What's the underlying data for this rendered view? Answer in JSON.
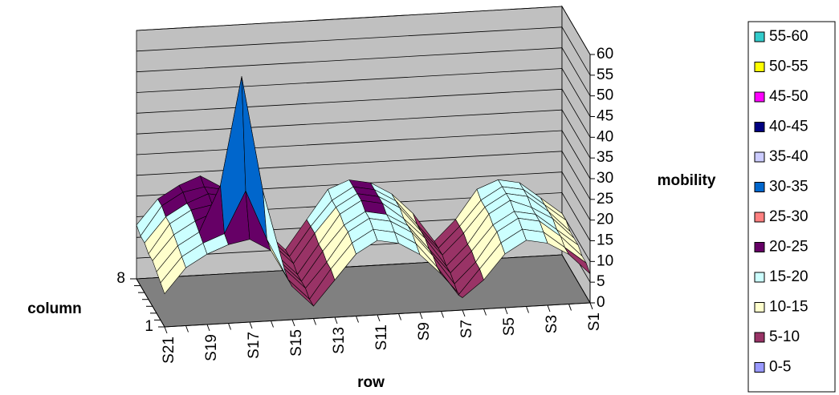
{
  "chart_data": {
    "type": "surface",
    "z_label": "mobility",
    "x_label": "row",
    "y_label": "column",
    "categories": [
      "S21",
      null,
      "S19",
      null,
      "S17",
      null,
      "S15",
      null,
      "S13",
      null,
      "S11",
      null,
      "S9",
      null,
      "S7",
      null,
      "S5",
      null,
      "S3",
      null,
      "S1"
    ],
    "columns": [
      "1",
      null,
      null,
      null,
      null,
      null,
      null,
      "8"
    ],
    "values": [
      [
        8,
        14,
        17,
        19,
        20,
        17,
        8,
        3,
        9,
        15,
        18,
        17,
        14,
        9,
        3,
        7,
        13,
        16,
        15,
        12,
        7
      ],
      [
        9,
        15,
        18,
        20,
        30,
        18,
        8,
        3,
        10,
        16,
        19,
        18,
        15,
        9,
        2,
        8,
        14,
        17,
        16,
        12,
        8
      ],
      [
        10,
        16,
        19,
        30,
        56,
        28,
        9,
        4,
        10,
        17,
        20,
        19,
        16,
        10,
        3,
        8,
        15,
        18,
        17,
        13,
        8
      ],
      [
        11,
        17,
        20,
        22,
        30,
        19,
        9,
        4,
        11,
        17,
        20,
        19,
        16,
        10,
        4,
        9,
        15,
        18,
        17,
        13,
        9
      ],
      [
        11,
        18,
        21,
        22,
        22,
        19,
        9,
        4,
        11,
        18,
        21,
        20,
        16,
        11,
        4,
        9,
        16,
        19,
        17,
        14,
        9
      ],
      [
        12,
        18,
        21,
        23,
        22,
        19,
        10,
        5,
        12,
        18,
        21,
        20,
        17,
        11,
        5,
        10,
        16,
        19,
        18,
        14,
        9
      ],
      [
        12,
        19,
        22,
        23,
        22,
        19,
        10,
        5,
        12,
        18,
        21,
        20,
        17,
        11,
        5,
        10,
        16,
        19,
        18,
        14,
        10
      ],
      [
        13,
        19,
        22,
        24,
        21,
        18,
        10,
        5,
        12,
        19,
        21,
        20,
        17,
        12,
        5,
        10,
        17,
        19,
        18,
        14,
        10
      ]
    ],
    "zlim": [
      0,
      60
    ],
    "zticks": [
      0,
      5,
      10,
      15,
      20,
      25,
      30,
      35,
      40,
      45,
      50,
      55,
      60
    ],
    "grid": true,
    "legend": [
      {
        "label": "55-60",
        "color": "#33cccc"
      },
      {
        "label": "50-55",
        "color": "#ffff00"
      },
      {
        "label": "45-50",
        "color": "#ff00ff"
      },
      {
        "label": "40-45",
        "color": "#000080"
      },
      {
        "label": "35-40",
        "color": "#ccccff"
      },
      {
        "label": "30-35",
        "color": "#0066cc"
      },
      {
        "label": "25-30",
        "color": "#ff8080"
      },
      {
        "label": "20-25",
        "color": "#660066"
      },
      {
        "label": "15-20",
        "color": "#ccffff"
      },
      {
        "label": "10-15",
        "color": "#ffffcc"
      },
      {
        "label": "5-10",
        "color": "#993366"
      },
      {
        "label": "0-5",
        "color": "#9999ff"
      }
    ]
  }
}
